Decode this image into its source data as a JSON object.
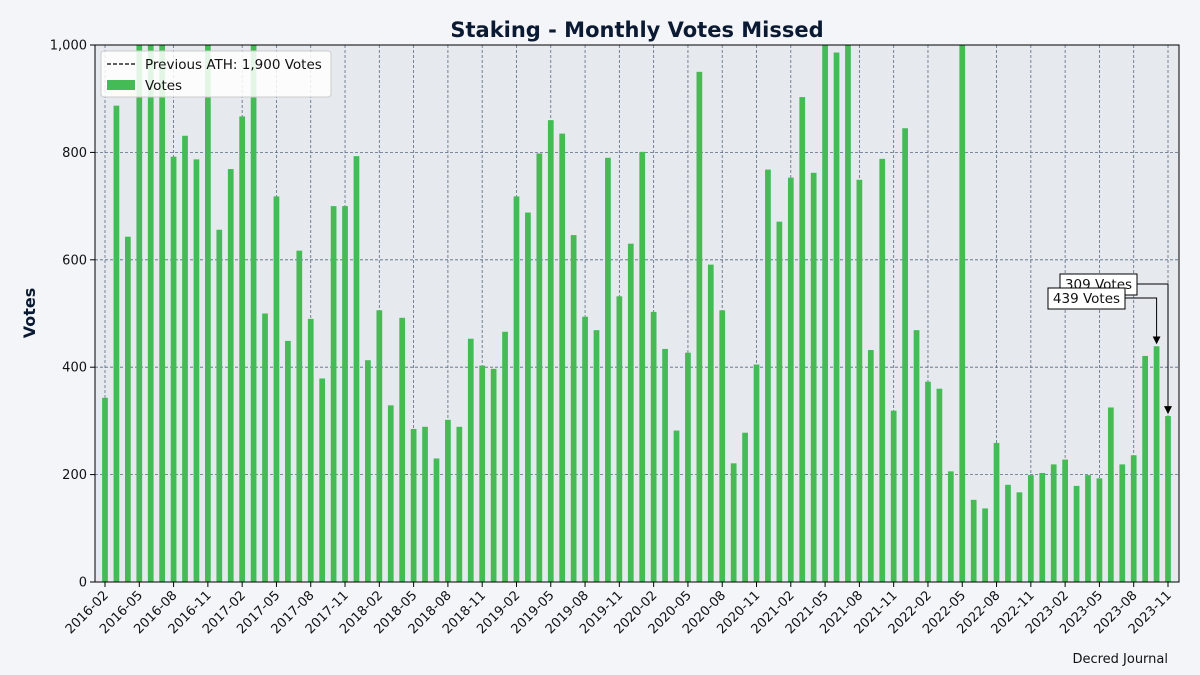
{
  "chart_data": {
    "type": "bar",
    "title": "Staking - Monthly Votes Missed",
    "xlabel": "",
    "ylabel": "Votes",
    "source": "Decred Journal",
    "ylim": [
      0,
      1000
    ],
    "y_ticks": [
      0,
      200,
      400,
      600,
      800,
      1000
    ],
    "y_tick_labels": [
      "0",
      "200",
      "400",
      "600",
      "800",
      "1,000"
    ],
    "x_tick_labels": [
      "2016-02",
      "2016-05",
      "2016-08",
      "2016-11",
      "2017-02",
      "2017-05",
      "2017-08",
      "2017-11",
      "2018-02",
      "2018-05",
      "2018-08",
      "2018-11",
      "2019-02",
      "2019-05",
      "2019-08",
      "2019-11",
      "2020-02",
      "2020-05",
      "2020-08",
      "2020-11",
      "2021-02",
      "2021-05",
      "2021-08",
      "2021-11",
      "2022-02",
      "2022-05",
      "2022-08",
      "2022-11",
      "2023-02",
      "2023-05",
      "2023-08",
      "2023-11"
    ],
    "x_tick_step": 3,
    "grid": true,
    "legend_position": "top-left",
    "legend": [
      {
        "label": "Previous ATH: 1,900 Votes",
        "style": "dashed-line",
        "color": "#000000"
      },
      {
        "label": "Votes",
        "style": "bar",
        "color": "#44bb55"
      }
    ],
    "reference_line": {
      "label": "Previous ATH: 1,900 Votes",
      "value": 1900
    },
    "categories": [
      "2016-02",
      "2016-03",
      "2016-04",
      "2016-05",
      "2016-06",
      "2016-07",
      "2016-08",
      "2016-09",
      "2016-10",
      "2016-11",
      "2016-12",
      "2017-01",
      "2017-02",
      "2017-03",
      "2017-04",
      "2017-05",
      "2017-06",
      "2017-07",
      "2017-08",
      "2017-09",
      "2017-10",
      "2017-11",
      "2017-12",
      "2018-01",
      "2018-02",
      "2018-03",
      "2018-04",
      "2018-05",
      "2018-06",
      "2018-07",
      "2018-08",
      "2018-09",
      "2018-10",
      "2018-11",
      "2018-12",
      "2019-01",
      "2019-02",
      "2019-03",
      "2019-04",
      "2019-05",
      "2019-06",
      "2019-07",
      "2019-08",
      "2019-09",
      "2019-10",
      "2019-11",
      "2019-12",
      "2020-01",
      "2020-02",
      "2020-03",
      "2020-04",
      "2020-05",
      "2020-06",
      "2020-07",
      "2020-08",
      "2020-09",
      "2020-10",
      "2020-11",
      "2020-12",
      "2021-01",
      "2021-02",
      "2021-03",
      "2021-04",
      "2021-05",
      "2021-06",
      "2021-07",
      "2021-08",
      "2021-09",
      "2021-10",
      "2021-11",
      "2021-12",
      "2022-01",
      "2022-02",
      "2022-03",
      "2022-04",
      "2022-05",
      "2022-06",
      "2022-07",
      "2022-08",
      "2022-09",
      "2022-10",
      "2022-11",
      "2022-12",
      "2023-01",
      "2023-02",
      "2023-03",
      "2023-04",
      "2023-05",
      "2023-06",
      "2023-07",
      "2023-08",
      "2023-09",
      "2023-10",
      "2023-11"
    ],
    "series": [
      {
        "name": "Votes",
        "color": "#44bb55",
        "values": [
          343,
          887,
          643,
          1000,
          1000,
          1000,
          792,
          831,
          787,
          1000,
          656,
          769,
          867,
          1000,
          500,
          718,
          449,
          617,
          490,
          379,
          700,
          700,
          793,
          413,
          506,
          329,
          492,
          285,
          289,
          230,
          302,
          289,
          453,
          403,
          397,
          466,
          718,
          688,
          798,
          860,
          835,
          646,
          494,
          469,
          790,
          532,
          630,
          801,
          503,
          434,
          282,
          427,
          950,
          591,
          506,
          221,
          278,
          405,
          768,
          671,
          753,
          903,
          762,
          1000,
          986,
          1000,
          749,
          432,
          788,
          319,
          845,
          469,
          373,
          360,
          206,
          1000,
          153,
          137,
          259,
          181,
          167,
          199,
          203,
          219,
          228,
          179,
          199,
          193,
          325,
          219,
          236,
          421,
          439,
          309
        ]
      }
    ],
    "annotations": [
      {
        "text": "439 Votes",
        "category": "2023-10",
        "value": 439
      },
      {
        "text": "309 Votes",
        "category": "2023-11",
        "value": 309
      }
    ]
  }
}
